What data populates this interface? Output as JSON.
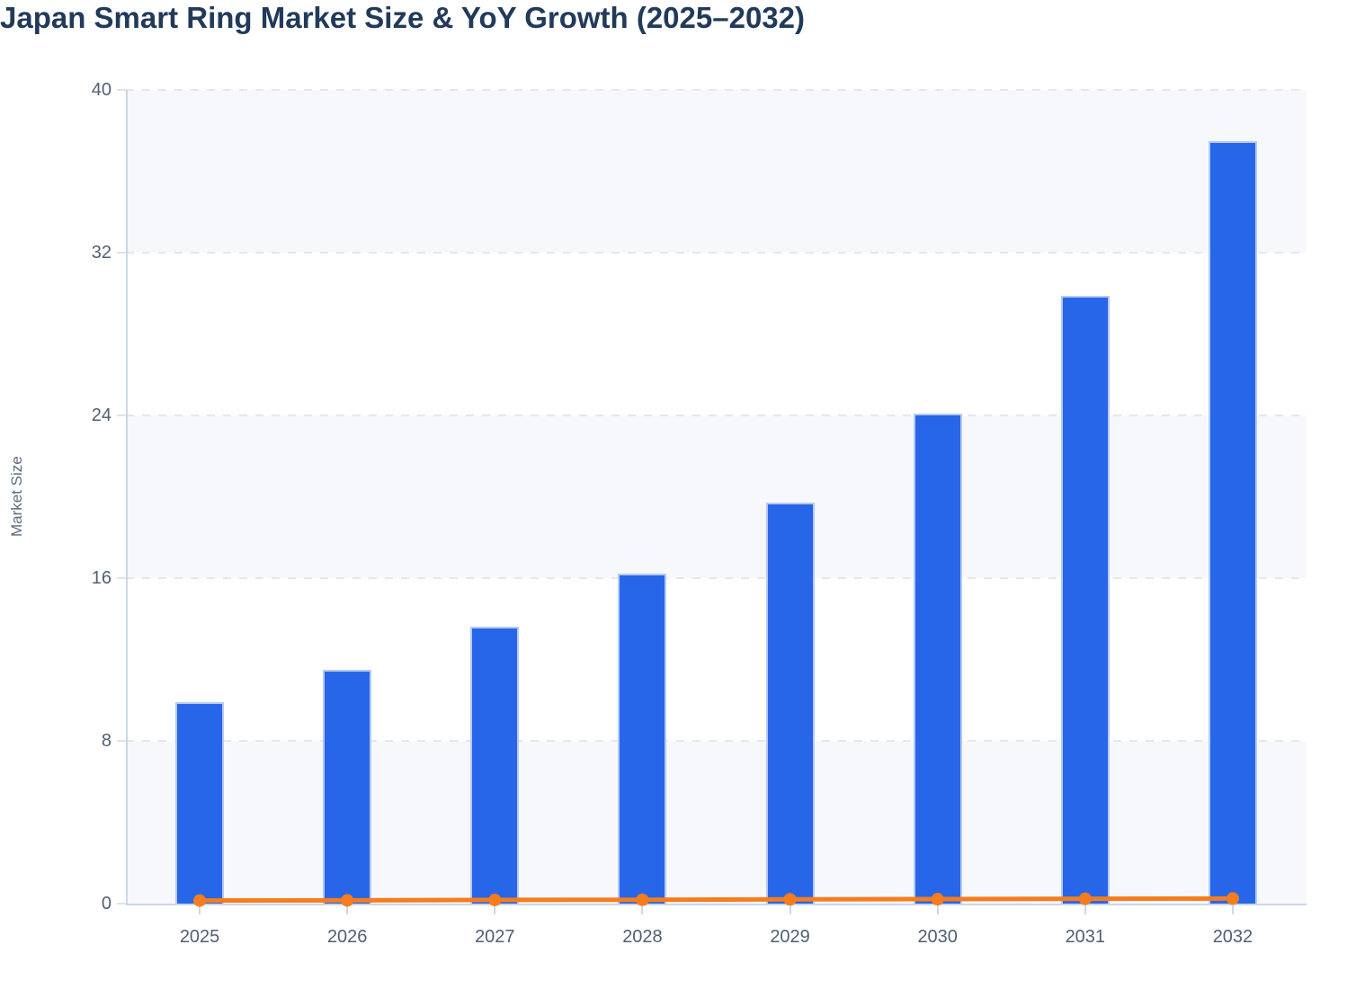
{
  "page": {
    "title": "Japan Smart Ring Market Size & YoY Growth (2025–2032)"
  },
  "colors": {
    "bar_fill": "#2766e8",
    "bar_border": "#b6c9f4",
    "line": "#f57d1e",
    "title_text": "#223a5a",
    "tick_label_text": "#515f72",
    "axis_title_text": "#5d6b7e",
    "axis_line": "#ccd6eb",
    "gridline": "#e5e7ed",
    "plot_band": "#f7f8fb",
    "background": "#ffffff"
  },
  "chart_data": {
    "type": "bar",
    "title": "Japan Smart Ring Market Size & YoY Growth (2025–2032)",
    "categories": [
      "2025",
      "2026",
      "2027",
      "2028",
      "2029",
      "2030",
      "2031",
      "2032"
    ],
    "series": [
      {
        "name": "Market Size",
        "type": "bar",
        "color": "#2766e8",
        "values": [
          9.9,
          11.5,
          13.6,
          16.2,
          19.7,
          24.1,
          29.9,
          37.5
        ]
      },
      {
        "name": "YoY Growth",
        "type": "line",
        "color": "#f57d1e",
        "values": [
          0.15,
          0.16,
          0.18,
          0.19,
          0.21,
          0.22,
          0.24,
          0.25
        ]
      }
    ],
    "xlabel": "",
    "ylabel": "Market Size",
    "ylim": [
      0,
      40
    ],
    "yticks": [
      0,
      8,
      16,
      24,
      32,
      40
    ],
    "grid": "horizontal-dashed",
    "plot_bands_alternating": true,
    "legend_position": "none"
  }
}
